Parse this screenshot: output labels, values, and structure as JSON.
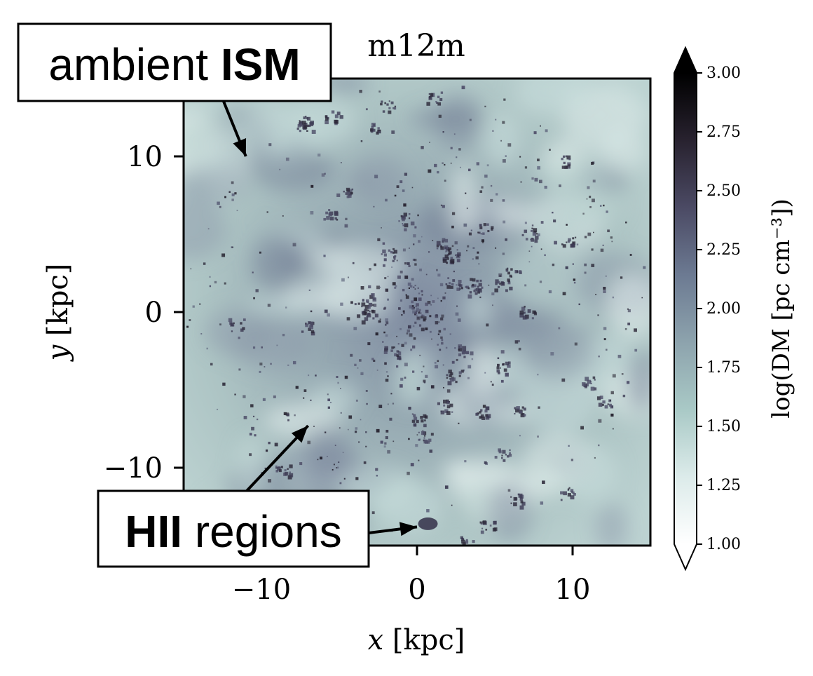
{
  "chart_data": {
    "type": "heatmap",
    "title": "m12m",
    "xlabel": "x [kpc]",
    "ylabel": "y [kpc]",
    "xlim": [
      -15,
      15
    ],
    "ylim": [
      -15,
      15
    ],
    "x_ticks": [
      -10,
      0,
      10
    ],
    "x_tick_labels": [
      "−10",
      "0",
      "10"
    ],
    "y_ticks": [
      -10,
      0,
      10
    ],
    "y_tick_labels": [
      "−10",
      "0",
      "10"
    ],
    "colorbar": {
      "label": "log(DM [pc cm⁻³])",
      "range": [
        1.0,
        3.0
      ],
      "extend": "both",
      "ticks": [
        1.0,
        1.25,
        1.5,
        1.75,
        2.0,
        2.25,
        2.5,
        2.75,
        3.0
      ],
      "tick_labels": [
        "1.00",
        "1.25",
        "1.50",
        "1.75",
        "2.00",
        "2.25",
        "2.50",
        "2.75",
        "3.00"
      ],
      "colormap": [
        "#ffffff",
        "#dcebea",
        "#a9c9c6",
        "#8da3ad",
        "#6c7a92",
        "#4b4a64",
        "#28222f",
        "#000000"
      ]
    },
    "annotations": [
      {
        "label_plain": "ambient ",
        "label_bold": "ISM",
        "bold_first": false,
        "points_to": [
          -11,
          10
        ]
      },
      {
        "label_bold": "HII",
        "label_plain": " regions",
        "bold_first": true,
        "points_to": [
          -7,
          -7.3
        ],
        "points_to_2": [
          0,
          -13.8
        ]
      }
    ],
    "grid": false
  }
}
